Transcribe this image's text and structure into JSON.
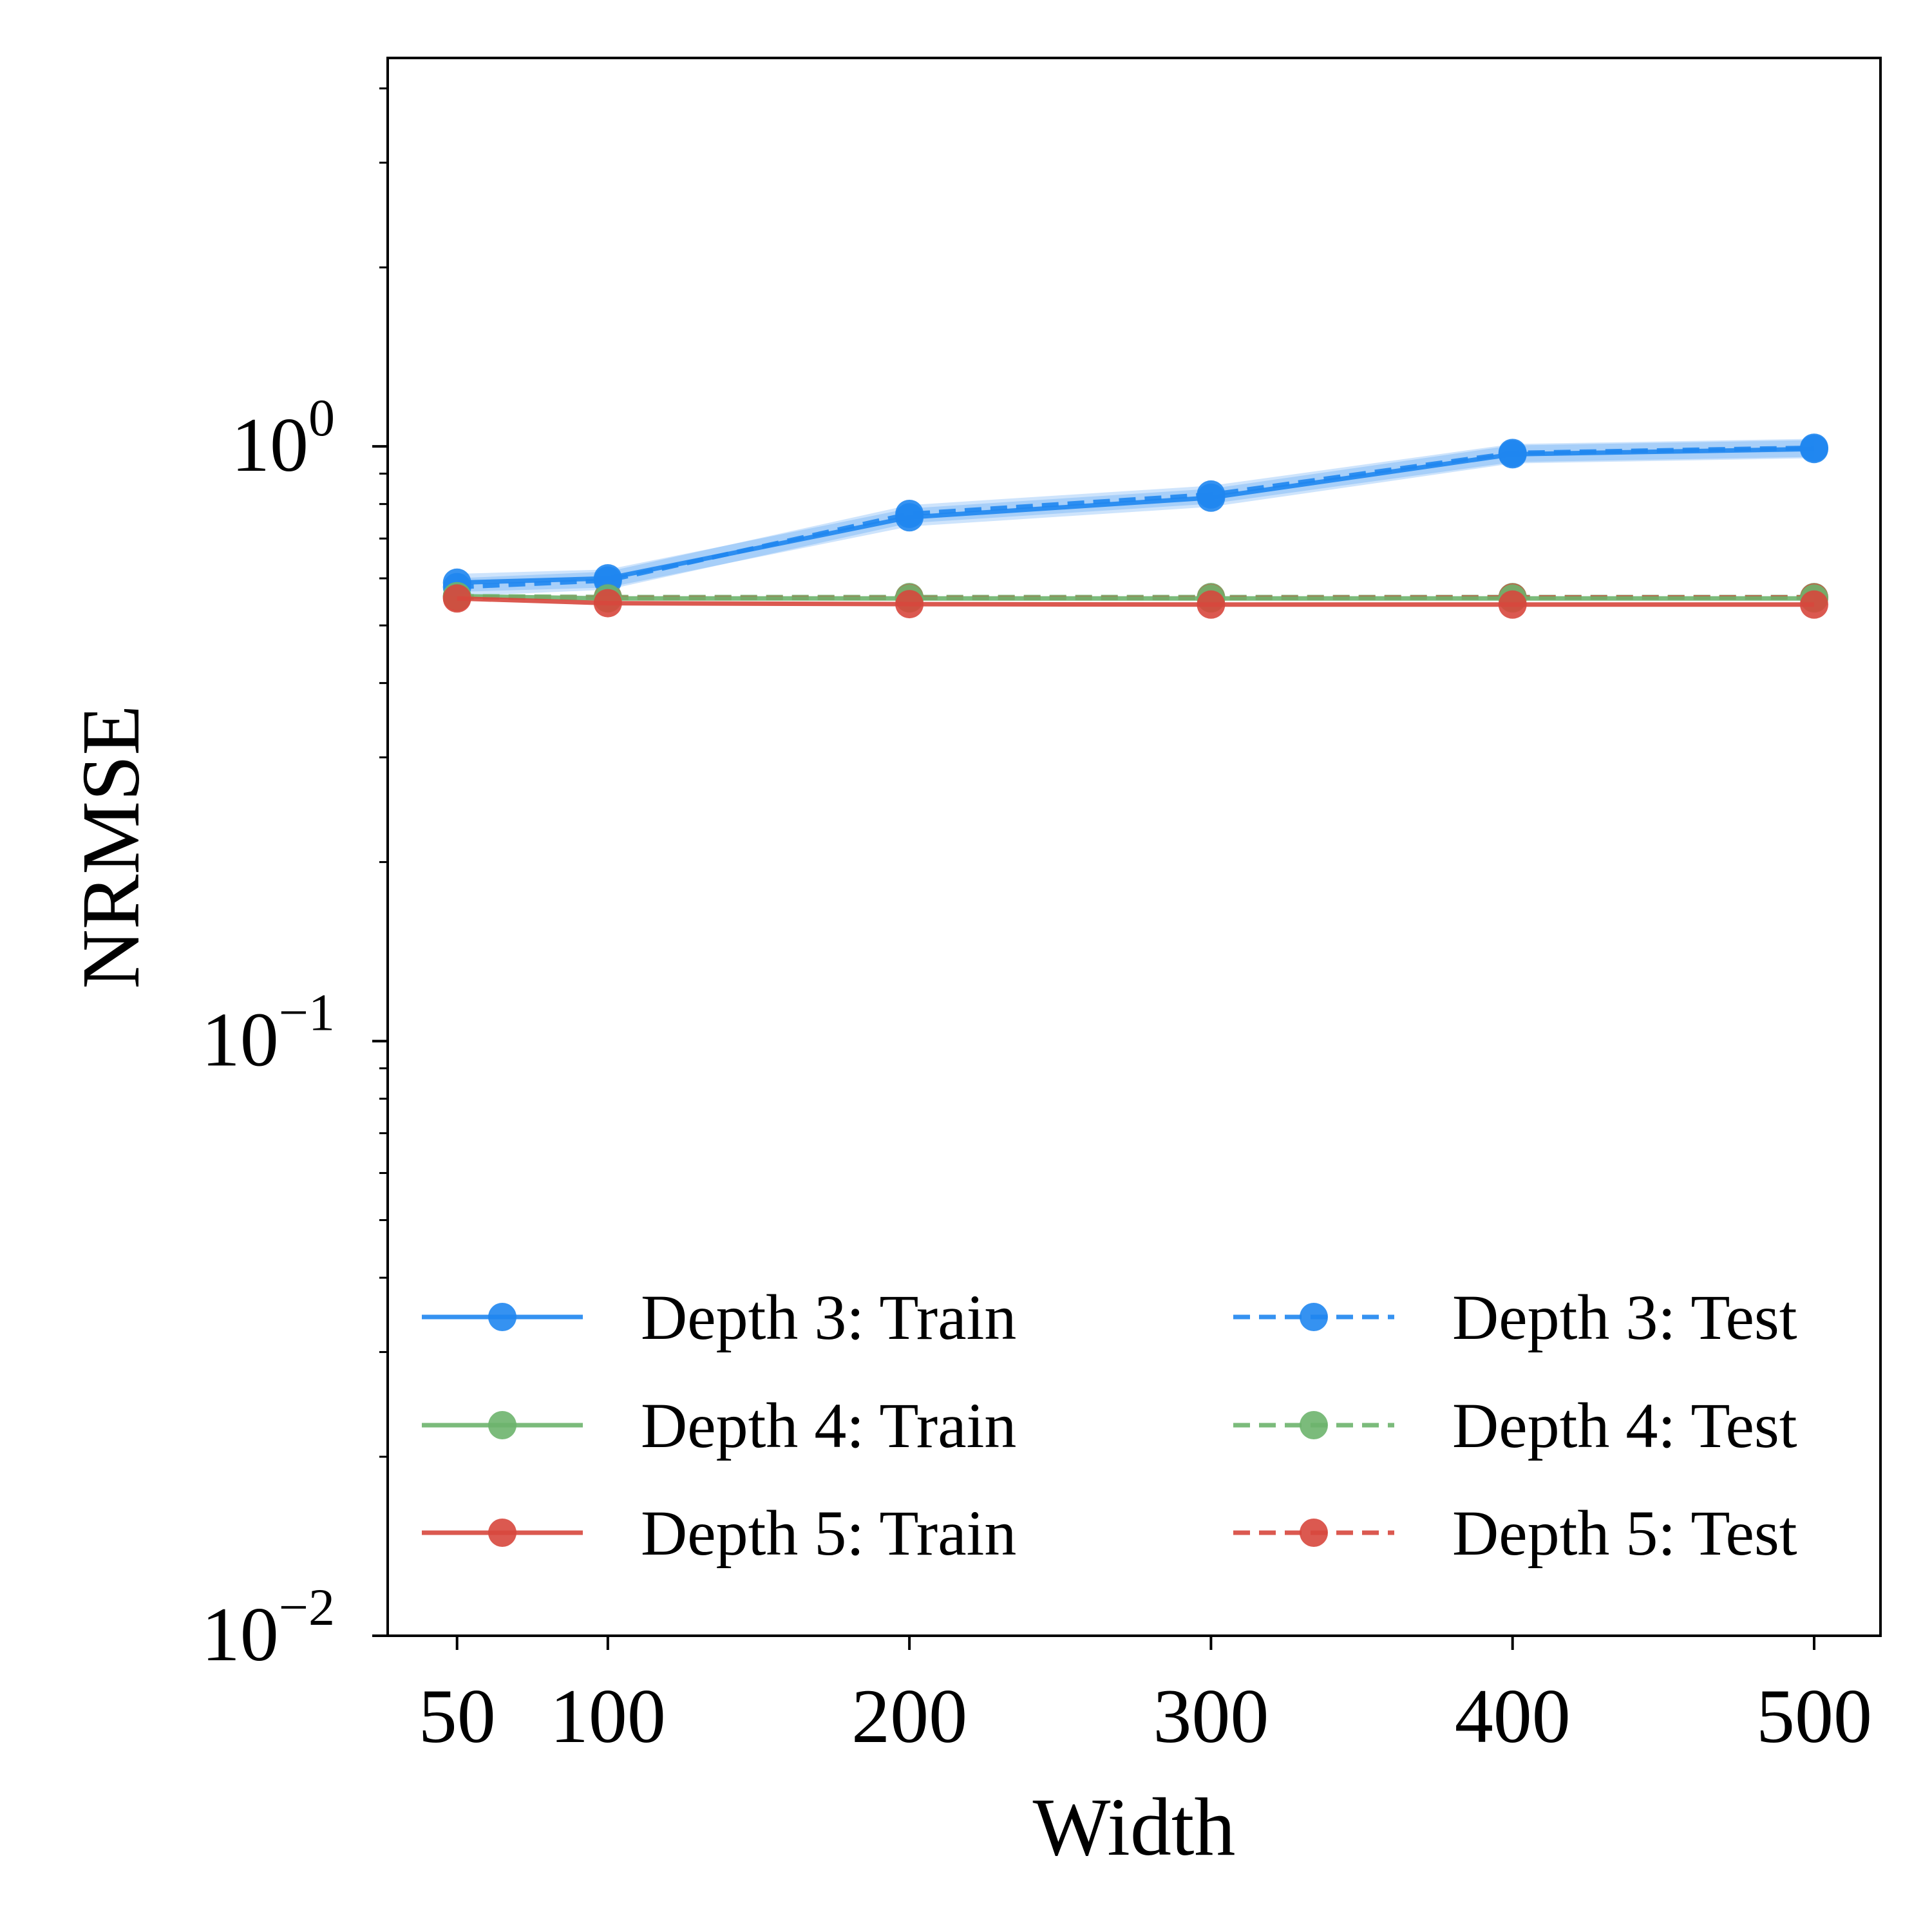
{
  "chart_data": {
    "type": "line",
    "title": "",
    "xlabel": "Width",
    "ylabel": "NRMSE",
    "yscale": "log",
    "ylim": [
      0.01,
      4.5
    ],
    "xlim": [
      27,
      522
    ],
    "x": [
      50,
      100,
      200,
      300,
      400,
      500
    ],
    "xticks": [
      "50",
      "100",
      "200",
      "300",
      "400",
      "500"
    ],
    "yticks": [
      {
        "value": 1,
        "base": "10",
        "exp": "0"
      },
      {
        "value": 0.1,
        "base": "10",
        "exp": "−1"
      },
      {
        "value": 0.01,
        "base": "10",
        "exp": "−2"
      }
    ],
    "legend_position": "lower-center",
    "series": [
      {
        "name": "Depth 3: Train",
        "color": "#1f86f0",
        "dash": "solid",
        "values": [
          0.59,
          0.6,
          0.76,
          0.82,
          0.97,
          0.99
        ],
        "band": 0.035
      },
      {
        "name": "Depth 4: Train",
        "color": "#6db46d",
        "dash": "solid",
        "values": [
          0.56,
          0.555,
          0.555,
          0.555,
          0.555,
          0.555
        ],
        "band": 0.0
      },
      {
        "name": "Depth 5: Train",
        "color": "#d7473d",
        "dash": "solid",
        "values": [
          0.555,
          0.545,
          0.543,
          0.542,
          0.542,
          0.542
        ],
        "band": 0.0
      },
      {
        "name": "Depth 3: Test",
        "color": "#1f86f0",
        "dash": "dashed",
        "values": [
          0.58,
          0.595,
          0.77,
          0.83,
          0.975,
          0.995
        ],
        "band": 0.035
      },
      {
        "name": "Depth 4: Test",
        "color": "#6db46d",
        "dash": "dashed",
        "values": [
          0.56,
          0.558,
          0.558,
          0.558,
          0.558,
          0.558
        ],
        "band": 0.0
      },
      {
        "name": "Depth 5: Test",
        "color": "#d7473d",
        "dash": "dashed",
        "values": [
          0.558,
          0.556,
          0.556,
          0.556,
          0.557,
          0.557
        ],
        "band": 0.0
      }
    ]
  }
}
